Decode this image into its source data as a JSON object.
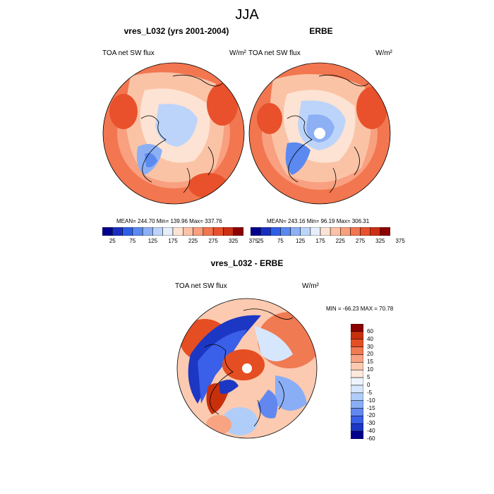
{
  "page_title": "JJA",
  "panels": [
    {
      "title": "vres_L032 (yrs 2001-2004)",
      "left_label": "TOA net SW flux",
      "units": "W/m²",
      "stats": "MEAN= 244.70  Min= 139.96  Max= 337.76"
    },
    {
      "title": "ERBE",
      "left_label": "TOA net SW flux",
      "units": "W/m²",
      "stats": "MEAN= 243.16  Min=  96.19  Max= 306.31"
    },
    {
      "title": "vres_L032 - ERBE",
      "left_label": "TOA net SW flux",
      "units": "W/m²",
      "stats": "MIN = -66.23 MAX =  70.78"
    }
  ],
  "colors": {
    "abs_scale": [
      "#00008b",
      "#1a2fbf",
      "#2f5fe6",
      "#5b89f0",
      "#8db0f5",
      "#bdd4fa",
      "#e6eefc",
      "#fde3d3",
      "#fbc3a6",
      "#f8a07f",
      "#f2764f",
      "#e8512b",
      "#cc2f12",
      "#8b0000"
    ],
    "diff_scale": [
      "#00008b",
      "#1c37c4",
      "#3a5fe8",
      "#6288f0",
      "#8aaef5",
      "#b0cdf9",
      "#d6e6fc",
      "#eef5fe",
      "#fde8dc",
      "#fbcab0",
      "#f8a382",
      "#f07a52",
      "#e54e22",
      "#c8300c",
      "#8b0000"
    ]
  },
  "chart_data": [
    {
      "type": "heatmap",
      "title": "vres_L032 (yrs 2001-2004)",
      "variable": "TOA net SW flux",
      "units": "W/m2",
      "projection": "north polar stereographic",
      "mean": 244.7,
      "min": 139.96,
      "max": 337.76,
      "colorbar_ticks": [
        "25",
        "75",
        "125",
        "175",
        "225",
        "275",
        "325",
        "375"
      ]
    },
    {
      "type": "heatmap",
      "title": "ERBE",
      "variable": "TOA net SW flux",
      "units": "W/m2",
      "projection": "north polar stereographic",
      "mean": 243.16,
      "min": 96.19,
      "max": 306.31,
      "colorbar_ticks": [
        "25",
        "75",
        "125",
        "175",
        "225",
        "275",
        "325",
        "375"
      ]
    },
    {
      "type": "heatmap",
      "title": "vres_L032 - ERBE",
      "variable": "TOA net SW flux",
      "units": "W/m2",
      "projection": "north polar stereographic",
      "min": -66.23,
      "max": 70.78,
      "colorbar_ticks": [
        "60",
        "40",
        "30",
        "20",
        "15",
        "10",
        "5",
        "0",
        "-5",
        "-10",
        "-15",
        "-20",
        "-30",
        "-40",
        "-60"
      ]
    }
  ]
}
